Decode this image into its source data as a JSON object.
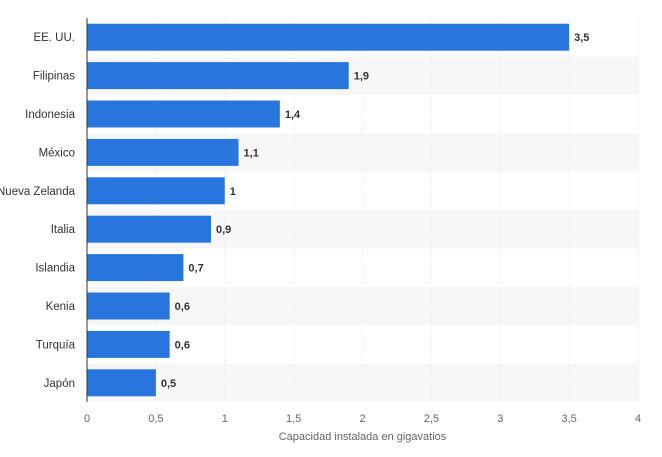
{
  "chart_data": {
    "type": "bar",
    "orientation": "horizontal",
    "categories": [
      "EE. UU.",
      "Filipinas",
      "Indonesia",
      "México",
      "Nueva Zelanda",
      "Italia",
      "Islandia",
      "Kenia",
      "Turquía",
      "Japón"
    ],
    "values": [
      3.5,
      1.9,
      1.4,
      1.1,
      1,
      0.9,
      0.7,
      0.6,
      0.6,
      0.5
    ],
    "value_labels": [
      "3,5",
      "1,9",
      "1,4",
      "1,1",
      "1",
      "0,9",
      "0,7",
      "0,6",
      "0,6",
      "0,5"
    ],
    "xlabel": "Capacidad instalada en gigavatios",
    "xlim": [
      0,
      4
    ],
    "x_ticks": [
      0,
      0.5,
      1,
      1.5,
      2,
      2.5,
      3,
      3.5,
      4
    ],
    "x_tick_labels": [
      "0",
      "0,5",
      "1",
      "1,5",
      "2",
      "2,5",
      "3",
      "3,5",
      "4"
    ],
    "grid": true,
    "legend": "none",
    "bar_color": "#2876dd",
    "stripe_color": "#f7f7f7",
    "grid_color": "#e6e6e6"
  }
}
